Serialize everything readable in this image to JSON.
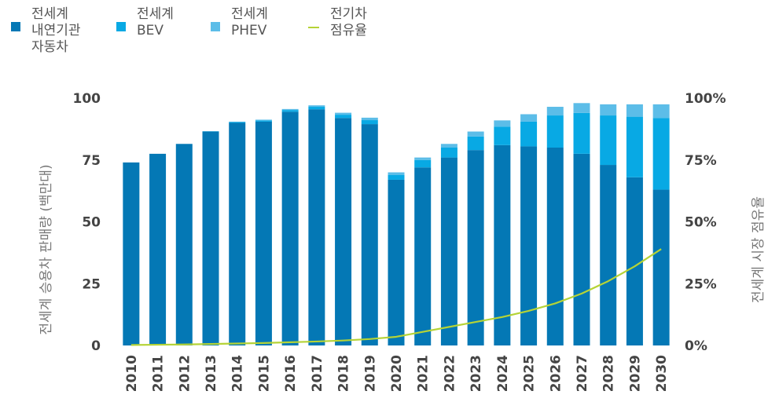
{
  "colors": {
    "ice": "#0478b5",
    "bev": "#08a9e4",
    "phev": "#5cbde8",
    "share": "#b5d336",
    "axis_text": "#444444",
    "title_text": "#777777"
  },
  "legend": [
    {
      "label": "전세계\n내연기관\n자동차",
      "color": "#0478b5",
      "kind": "box"
    },
    {
      "label": "전세계\nBEV",
      "color": "#08a9e4",
      "kind": "box"
    },
    {
      "label": "전세계\nPHEV",
      "color": "#5cbde8",
      "kind": "box"
    },
    {
      "label": "전기차\n점유율",
      "color": "#b5d336",
      "kind": "line"
    }
  ],
  "chart_data": {
    "type": "bar",
    "stacked": true,
    "categories": [
      "2010",
      "2011",
      "2012",
      "2013",
      "2014",
      "2015",
      "2016",
      "2017",
      "2018",
      "2019",
      "2020",
      "2021",
      "2022",
      "2023",
      "2024",
      "2025",
      "2026",
      "2027",
      "2028",
      "2029",
      "2030"
    ],
    "series": [
      {
        "name": "전세계 내연기관 자동차",
        "values": [
          74,
          77.5,
          81.5,
          86.5,
          90,
          90.5,
          94.5,
          95.5,
          92,
          89.5,
          67,
          72,
          76,
          79,
          81,
          80.5,
          80,
          77.5,
          73,
          68,
          63
        ]
      },
      {
        "name": "전세계 BEV",
        "values": [
          0,
          0,
          0,
          0.1,
          0.3,
          0.5,
          0.7,
          1,
          1.3,
          1.6,
          2,
          3,
          4,
          5.5,
          7.5,
          10,
          13,
          16.5,
          20,
          24.5,
          29
        ]
      },
      {
        "name": "전세계 PHEV",
        "values": [
          0,
          0,
          0,
          0,
          0.2,
          0.3,
          0.4,
          0.6,
          0.8,
          1,
          1,
          1,
          1.5,
          2,
          2.5,
          3,
          3.5,
          4,
          4.5,
          5,
          5.5
        ]
      }
    ],
    "share_series": {
      "name": "전기차 점유율",
      "values": [
        0.2,
        0.3,
        0.4,
        0.6,
        0.8,
        1,
        1.3,
        1.6,
        2,
        2.6,
        3.5,
        5.5,
        7.5,
        9.5,
        11.5,
        14,
        17,
        21,
        26,
        32,
        39
      ]
    },
    "ylabel": "전세계 승용차 판매량 (백만대)",
    "y2label": "전세계 시장 점유율",
    "ylim": [
      0,
      100
    ],
    "y2lim": [
      0,
      100
    ],
    "yticks": [
      "0",
      "25",
      "50",
      "75",
      "100"
    ],
    "y2ticks": [
      "0%",
      "25%",
      "50%",
      "75%",
      "100%"
    ]
  }
}
